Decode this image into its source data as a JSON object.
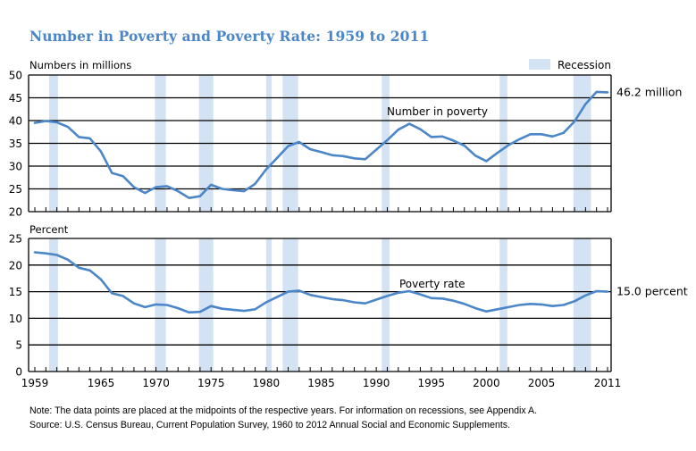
{
  "title": "Number in Poverty and Poverty Rate: 1959 to 2011",
  "legend": {
    "label": "Recession",
    "color": "#d3e3f3"
  },
  "line_color": "#4a86c8",
  "notes": {
    "note": "Note: The data points are placed at the midpoints of the respective years. For information on recessions, see Appendix A.",
    "source": "Source: U.S. Census Bureau, Current Population Survey, 1960 to 2012 Annual Social and Economic Supplements."
  },
  "chart_data": [
    {
      "type": "line",
      "title": "Number in Poverty",
      "ylabel": "Numbers in millions",
      "ylim": [
        20,
        50
      ],
      "yticks": [
        20,
        25,
        30,
        35,
        40,
        45,
        50
      ],
      "xlim": [
        1959,
        2011
      ],
      "xtick_labels": [
        "1959",
        "1965",
        "1970",
        "1975",
        "1980",
        "1985",
        "1990",
        "1995",
        "2000",
        "2005",
        "2011"
      ],
      "grid": true,
      "series_label": "Number in poverty",
      "end_label": "46.2 million",
      "x": [
        1959,
        1960,
        1961,
        1962,
        1963,
        1964,
        1965,
        1966,
        1967,
        1968,
        1969,
        1970,
        1971,
        1972,
        1973,
        1974,
        1975,
        1976,
        1977,
        1978,
        1979,
        1980,
        1981,
        1982,
        1983,
        1984,
        1985,
        1986,
        1987,
        1988,
        1989,
        1990,
        1991,
        1992,
        1993,
        1994,
        1995,
        1996,
        1997,
        1998,
        1999,
        2000,
        2001,
        2002,
        2003,
        2004,
        2005,
        2006,
        2007,
        2008,
        2009,
        2010,
        2011
      ],
      "values": [
        39.5,
        39.9,
        39.6,
        38.6,
        36.4,
        36.1,
        33.2,
        28.5,
        27.8,
        25.4,
        24.1,
        25.4,
        25.6,
        24.5,
        23.0,
        23.4,
        25.9,
        25.0,
        24.7,
        24.5,
        26.1,
        29.3,
        31.8,
        34.4,
        35.3,
        33.7,
        33.1,
        32.4,
        32.2,
        31.7,
        31.5,
        33.6,
        35.7,
        38.0,
        39.3,
        38.1,
        36.4,
        36.5,
        35.6,
        34.5,
        32.3,
        31.1,
        32.9,
        34.6,
        35.9,
        37.0,
        37.0,
        36.5,
        37.3,
        39.8,
        43.6,
        46.3,
        46.2
      ],
      "recessions": [
        [
          1960.3,
          1961.1
        ],
        [
          1969.9,
          1970.9
        ],
        [
          1973.9,
          1975.2
        ],
        [
          1980.0,
          1980.5
        ],
        [
          1981.5,
          1982.9
        ],
        [
          1990.5,
          1991.2
        ],
        [
          2001.2,
          2001.9
        ],
        [
          2007.9,
          2009.5
        ]
      ]
    },
    {
      "type": "line",
      "title": "Poverty Rate",
      "ylabel": "Percent",
      "ylim": [
        0,
        25
      ],
      "yticks": [
        0,
        5,
        10,
        15,
        20,
        25
      ],
      "xlim": [
        1959,
        2011
      ],
      "xtick_labels": [
        "1959",
        "1965",
        "1970",
        "1975",
        "1980",
        "1985",
        "1990",
        "1995",
        "2000",
        "2005",
        "2011"
      ],
      "grid": true,
      "series_label": "Poverty rate",
      "end_label": "15.0 percent",
      "x": [
        1959,
        1960,
        1961,
        1962,
        1963,
        1964,
        1965,
        1966,
        1967,
        1968,
        1969,
        1970,
        1971,
        1972,
        1973,
        1974,
        1975,
        1976,
        1977,
        1978,
        1979,
        1980,
        1981,
        1982,
        1983,
        1984,
        1985,
        1986,
        1987,
        1988,
        1989,
        1990,
        1991,
        1992,
        1993,
        1994,
        1995,
        1996,
        1997,
        1998,
        1999,
        2000,
        2001,
        2002,
        2003,
        2004,
        2005,
        2006,
        2007,
        2008,
        2009,
        2010,
        2011
      ],
      "values": [
        22.4,
        22.2,
        21.9,
        21.0,
        19.5,
        19.0,
        17.3,
        14.7,
        14.2,
        12.8,
        12.1,
        12.6,
        12.5,
        11.9,
        11.1,
        11.2,
        12.3,
        11.8,
        11.6,
        11.4,
        11.7,
        13.0,
        14.0,
        15.0,
        15.2,
        14.4,
        14.0,
        13.6,
        13.4,
        13.0,
        12.8,
        13.5,
        14.2,
        14.8,
        15.1,
        14.5,
        13.8,
        13.7,
        13.3,
        12.7,
        11.9,
        11.3,
        11.7,
        12.1,
        12.5,
        12.7,
        12.6,
        12.3,
        12.5,
        13.2,
        14.3,
        15.1,
        15.0
      ],
      "recessions": [
        [
          1960.3,
          1961.1
        ],
        [
          1969.9,
          1970.9
        ],
        [
          1973.9,
          1975.2
        ],
        [
          1980.0,
          1980.5
        ],
        [
          1981.5,
          1982.9
        ],
        [
          1990.5,
          1991.2
        ],
        [
          2001.2,
          2001.9
        ],
        [
          2007.9,
          2009.5
        ]
      ]
    }
  ]
}
